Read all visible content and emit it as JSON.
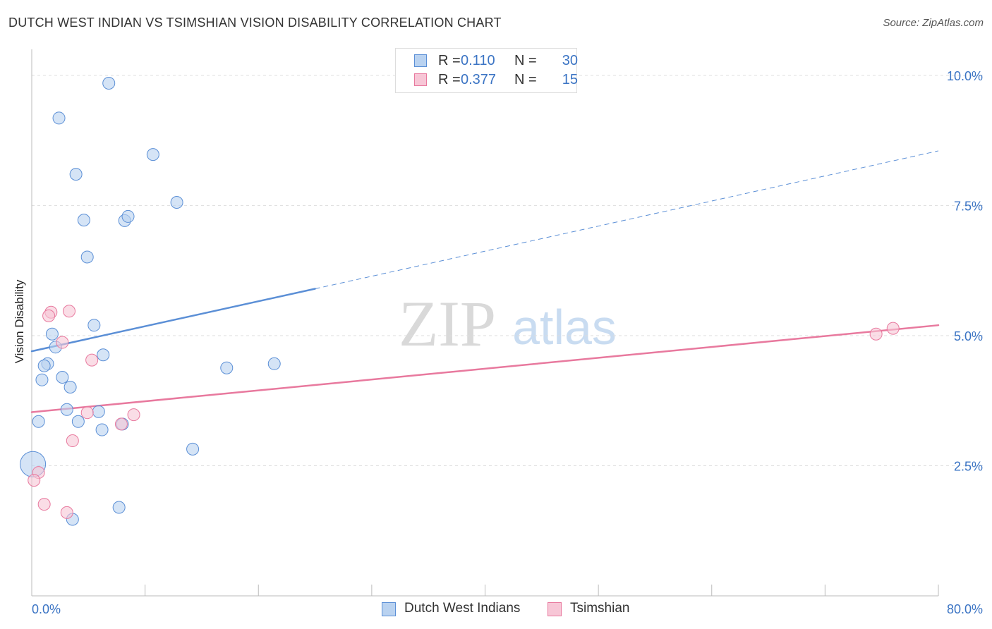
{
  "title": "DUTCH WEST INDIAN VS TSIMSHIAN VISION DISABILITY CORRELATION CHART",
  "source": "Source: ZipAtlas.com",
  "watermark": {
    "zip": "ZIP",
    "atlas": "atlas"
  },
  "chart_data": {
    "type": "scatter",
    "title": "DUTCH WEST INDIAN VS TSIMSHIAN VISION DISABILITY CORRELATION CHART",
    "xlabel": "",
    "ylabel": "Vision Disability",
    "xlim": [
      0,
      80
    ],
    "ylim": [
      0,
      10.5
    ],
    "x_tick_labels": [
      {
        "value": 0,
        "label": "0.0%"
      },
      {
        "value": 80,
        "label": "80.0%"
      }
    ],
    "y_tick_labels": [
      {
        "value": 2.5,
        "label": "2.5%"
      },
      {
        "value": 5.0,
        "label": "5.0%"
      },
      {
        "value": 7.5,
        "label": "7.5%"
      },
      {
        "value": 10.0,
        "label": "10.0%"
      }
    ],
    "grid": true,
    "legend_position": "bottom-center",
    "series": [
      {
        "name": "Dutch West Indians",
        "color": "#5b8fd6",
        "fill": "#b9d2f0",
        "stats": {
          "r_label": "R =",
          "r": "0.110",
          "n_label": "N =",
          "n": "30"
        },
        "points": [
          {
            "x": 6.8,
            "y": 9.85
          },
          {
            "x": 2.4,
            "y": 9.18
          },
          {
            "x": 10.7,
            "y": 8.48
          },
          {
            "x": 3.9,
            "y": 8.1
          },
          {
            "x": 12.8,
            "y": 7.56
          },
          {
            "x": 4.6,
            "y": 7.22
          },
          {
            "x": 8.2,
            "y": 7.21
          },
          {
            "x": 8.5,
            "y": 7.29
          },
          {
            "x": 4.9,
            "y": 6.51
          },
          {
            "x": 5.5,
            "y": 5.2
          },
          {
            "x": 1.8,
            "y": 5.03
          },
          {
            "x": 2.1,
            "y": 4.78
          },
          {
            "x": 6.3,
            "y": 4.63
          },
          {
            "x": 1.4,
            "y": 4.46
          },
          {
            "x": 1.1,
            "y": 4.42
          },
          {
            "x": 17.2,
            "y": 4.38
          },
          {
            "x": 21.4,
            "y": 4.46
          },
          {
            "x": 2.7,
            "y": 4.2
          },
          {
            "x": 0.9,
            "y": 4.15
          },
          {
            "x": 3.4,
            "y": 4.01
          },
          {
            "x": 3.1,
            "y": 3.58
          },
          {
            "x": 5.9,
            "y": 3.54
          },
          {
            "x": 0.6,
            "y": 3.35
          },
          {
            "x": 4.1,
            "y": 3.35
          },
          {
            "x": 6.2,
            "y": 3.19
          },
          {
            "x": 8.0,
            "y": 3.3
          },
          {
            "x": 14.2,
            "y": 2.82
          },
          {
            "x": 0.1,
            "y": 2.53,
            "size": "large"
          },
          {
            "x": 7.7,
            "y": 1.7
          },
          {
            "x": 3.6,
            "y": 1.47
          }
        ],
        "trend": {
          "x0": 0,
          "y0": 4.7,
          "x1": 25,
          "y1": 5.9,
          "x_ext": 80,
          "y_ext": 8.55
        }
      },
      {
        "name": "Tsimshian",
        "color": "#e8799e",
        "fill": "#f7c6d6",
        "stats": {
          "r_label": "R =",
          "r": "0.377",
          "n_label": "N =",
          "n": "15"
        },
        "points": [
          {
            "x": 3.3,
            "y": 5.47
          },
          {
            "x": 1.7,
            "y": 5.45
          },
          {
            "x": 1.5,
            "y": 5.38
          },
          {
            "x": 2.7,
            "y": 4.87
          },
          {
            "x": 5.3,
            "y": 4.53
          },
          {
            "x": 4.9,
            "y": 3.52
          },
          {
            "x": 9.0,
            "y": 3.48
          },
          {
            "x": 7.9,
            "y": 3.3
          },
          {
            "x": 3.6,
            "y": 2.98
          },
          {
            "x": 0.6,
            "y": 2.37
          },
          {
            "x": 0.2,
            "y": 2.22
          },
          {
            "x": 1.1,
            "y": 1.76
          },
          {
            "x": 3.1,
            "y": 1.6
          },
          {
            "x": 74.5,
            "y": 5.03
          },
          {
            "x": 76.0,
            "y": 5.14
          }
        ],
        "trend": {
          "x0": 0,
          "y0": 3.53,
          "x1": 80,
          "y1": 5.2
        }
      }
    ]
  }
}
